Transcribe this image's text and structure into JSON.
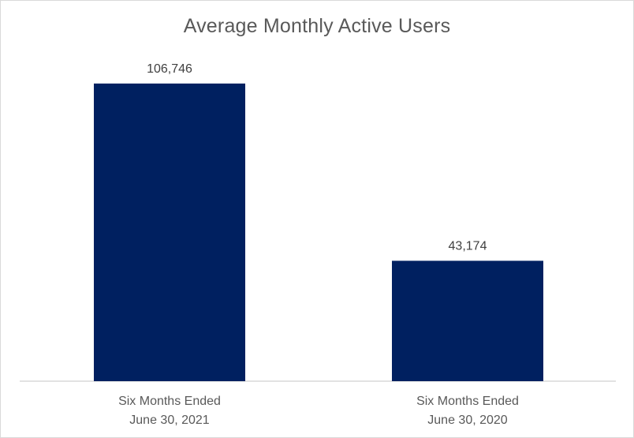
{
  "chart_data": {
    "type": "bar",
    "title": "Average Monthly Active Users",
    "categories": [
      [
        "Six Months Ended",
        "June 30, 2021"
      ],
      [
        "Six Months Ended",
        "June 30, 2020"
      ]
    ],
    "values": [
      106746,
      43174
    ],
    "data_labels": [
      "106,746",
      "43,174"
    ],
    "xlabel": "",
    "ylabel": "",
    "ylim": [
      0,
      120000
    ],
    "grid": false,
    "legend": "none",
    "bar_color": "#002060",
    "axis_color": "#d9d9d9"
  }
}
